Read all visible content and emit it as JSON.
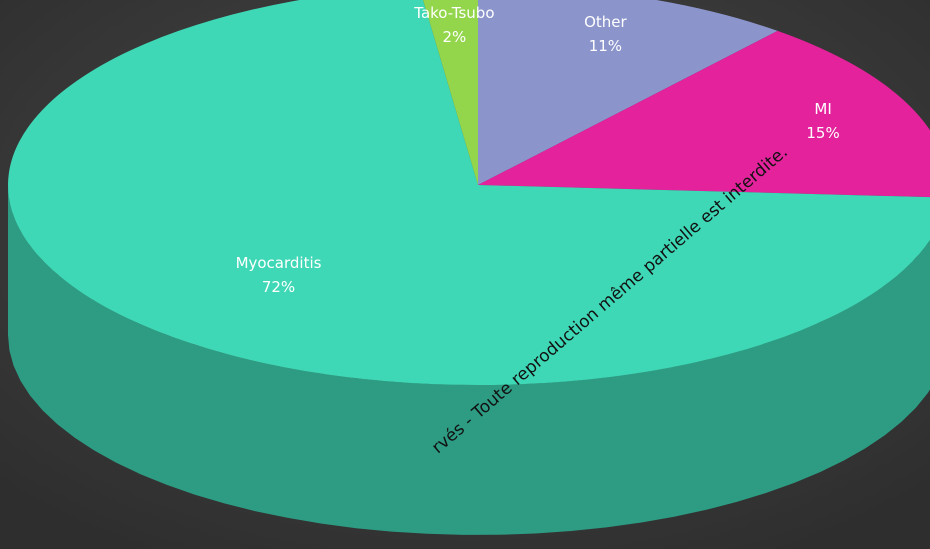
{
  "chart_data": {
    "type": "pie",
    "categories": [
      "Other",
      "MI",
      "Myocarditis",
      "Tako-Tsubo"
    ],
    "values": [
      11,
      15,
      72,
      2
    ],
    "value_labels": [
      "11%",
      "15%",
      "72%",
      "2%"
    ],
    "colors": [
      "#8b95cc",
      "#e3229c",
      "#3fd8b6",
      "#93d64c"
    ],
    "start_angle": 0,
    "direction": "clockwise",
    "three_d": true,
    "watermark": "rvés - Toute reproduction même partielle est interdite."
  }
}
